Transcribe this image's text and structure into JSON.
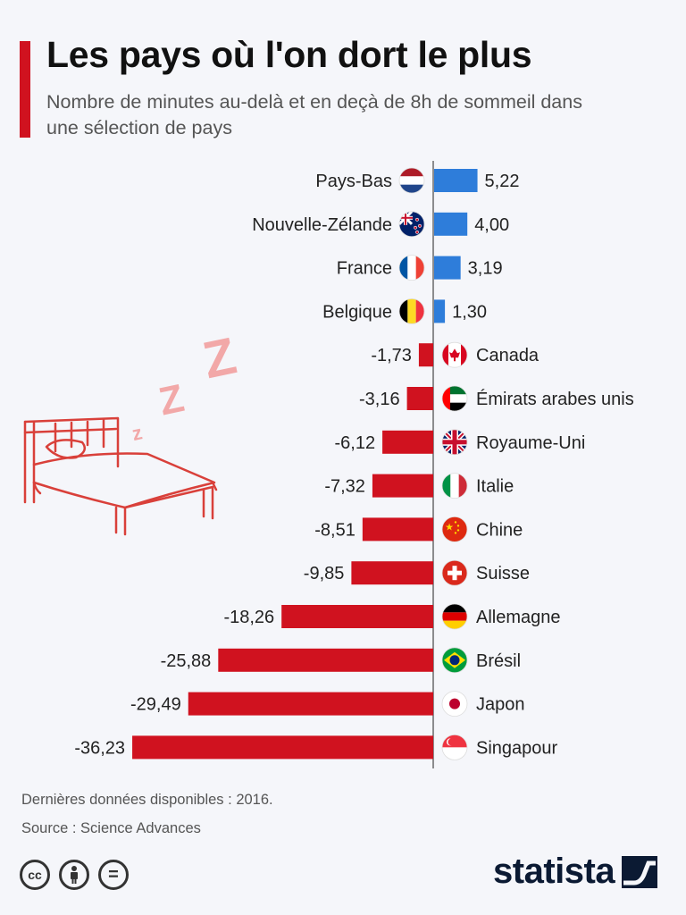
{
  "header": {
    "title": "Les pays où l'on dort le plus",
    "subtitle": "Nombre de minutes au-delà et en deçà de 8h de sommeil dans une sélection de pays"
  },
  "colors": {
    "positive": "#2e7dda",
    "negative": "#d0121f",
    "accent": "#d0121f",
    "illustration": "#d9403a",
    "zzz": "#f2a8a8"
  },
  "chart_data": {
    "type": "bar",
    "orientation": "horizontal",
    "categories": [
      "Pays-Bas",
      "Nouvelle-Zélande",
      "France",
      "Belgique",
      "Canada",
      "Émirats arabes unis",
      "Royaume-Uni",
      "Italie",
      "Chine",
      "Suisse",
      "Allemagne",
      "Brésil",
      "Japon",
      "Singapour"
    ],
    "values": [
      5.22,
      4.0,
      3.19,
      1.3,
      -1.73,
      -3.16,
      -6.12,
      -7.32,
      -8.51,
      -9.85,
      -18.26,
      -25.88,
      -29.49,
      -36.23
    ],
    "value_labels": [
      "5,22",
      "4,00",
      "3,19",
      "1,30",
      "-1,73",
      "-3,16",
      "-6,12",
      "-7,32",
      "-8,51",
      "-9,85",
      "-18,26",
      "-25,88",
      "-29,49",
      "-36,23"
    ],
    "flags": [
      "flag-netherlands-icon",
      "flag-new-zealand-icon",
      "flag-france-icon",
      "flag-belgium-icon",
      "flag-canada-icon",
      "flag-uae-icon",
      "flag-uk-icon",
      "flag-italy-icon",
      "flag-china-icon",
      "flag-switzerland-icon",
      "flag-germany-icon",
      "flag-brazil-icon",
      "flag-japan-icon",
      "flag-singapore-icon"
    ],
    "grid": false,
    "legend": "none"
  },
  "illustration": {
    "bed_icon": "bed-icon",
    "zzz_icon": "zzz-icon",
    "zzz_letters": [
      "Z",
      "Z",
      "z"
    ]
  },
  "footer": {
    "note": "Dernières données disponibles : 2016.",
    "source": "Source : Science Advances",
    "license_icons": [
      "cc-icon",
      "by-icon",
      "nd-icon"
    ],
    "cc_label": "cc",
    "nd_label": "=",
    "brand": "statista"
  }
}
